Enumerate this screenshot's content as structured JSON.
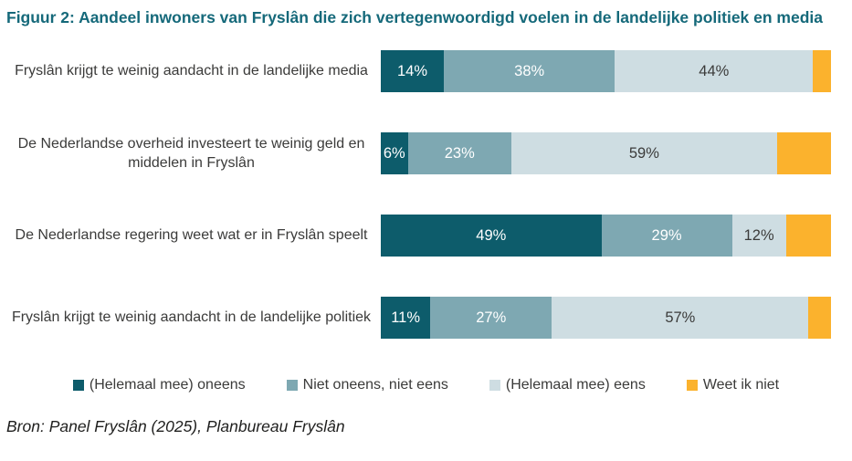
{
  "title": "Figuur 2: Aandeel inwoners van Fryslân die zich vertegenwoordigd voelen in de landelijke politiek en media",
  "source": "Bron: Panel Fryslân (2025), Planbureau Fryslân",
  "colors": {
    "title": "#15697a",
    "text": "#3b3b3a",
    "background": "#ffffff"
  },
  "chart_data": {
    "type": "bar",
    "orientation": "horizontal",
    "stacked": true,
    "grid": false,
    "axes_visible": false,
    "legend_position": "bottom",
    "xlim": [
      0,
      100
    ],
    "value_suffix": "%",
    "categories": [
      "Fryslân krijgt te weinig aandacht in de landelijke media",
      "De Nederlandse overheid investeert te weinig geld en middelen in Fryslân",
      "De Nederlandse regering weet wat er in Fryslân speelt",
      "Fryslân krijgt te weinig aandacht in de landelijke politiek"
    ],
    "series": [
      {
        "name": "(Helemaal mee) oneens",
        "color": "#0d5c6b",
        "label_color": "#ffffff",
        "show_value_labels": true,
        "values": [
          14,
          6,
          49,
          11
        ]
      },
      {
        "name": "Niet oneens, niet eens",
        "color": "#7ea8b2",
        "label_color": "#ffffff",
        "show_value_labels": true,
        "values": [
          38,
          23,
          29,
          27
        ]
      },
      {
        "name": "(Helemaal mee) eens",
        "color": "#cedde2",
        "label_color": "#3b3b3a",
        "show_value_labels": true,
        "values": [
          44,
          59,
          12,
          57
        ]
      },
      {
        "name": "Weet ik niet",
        "color": "#fbb22d",
        "label_color": "#3b3b3a",
        "show_value_labels": false,
        "values": [
          4,
          12,
          10,
          5
        ]
      }
    ]
  }
}
